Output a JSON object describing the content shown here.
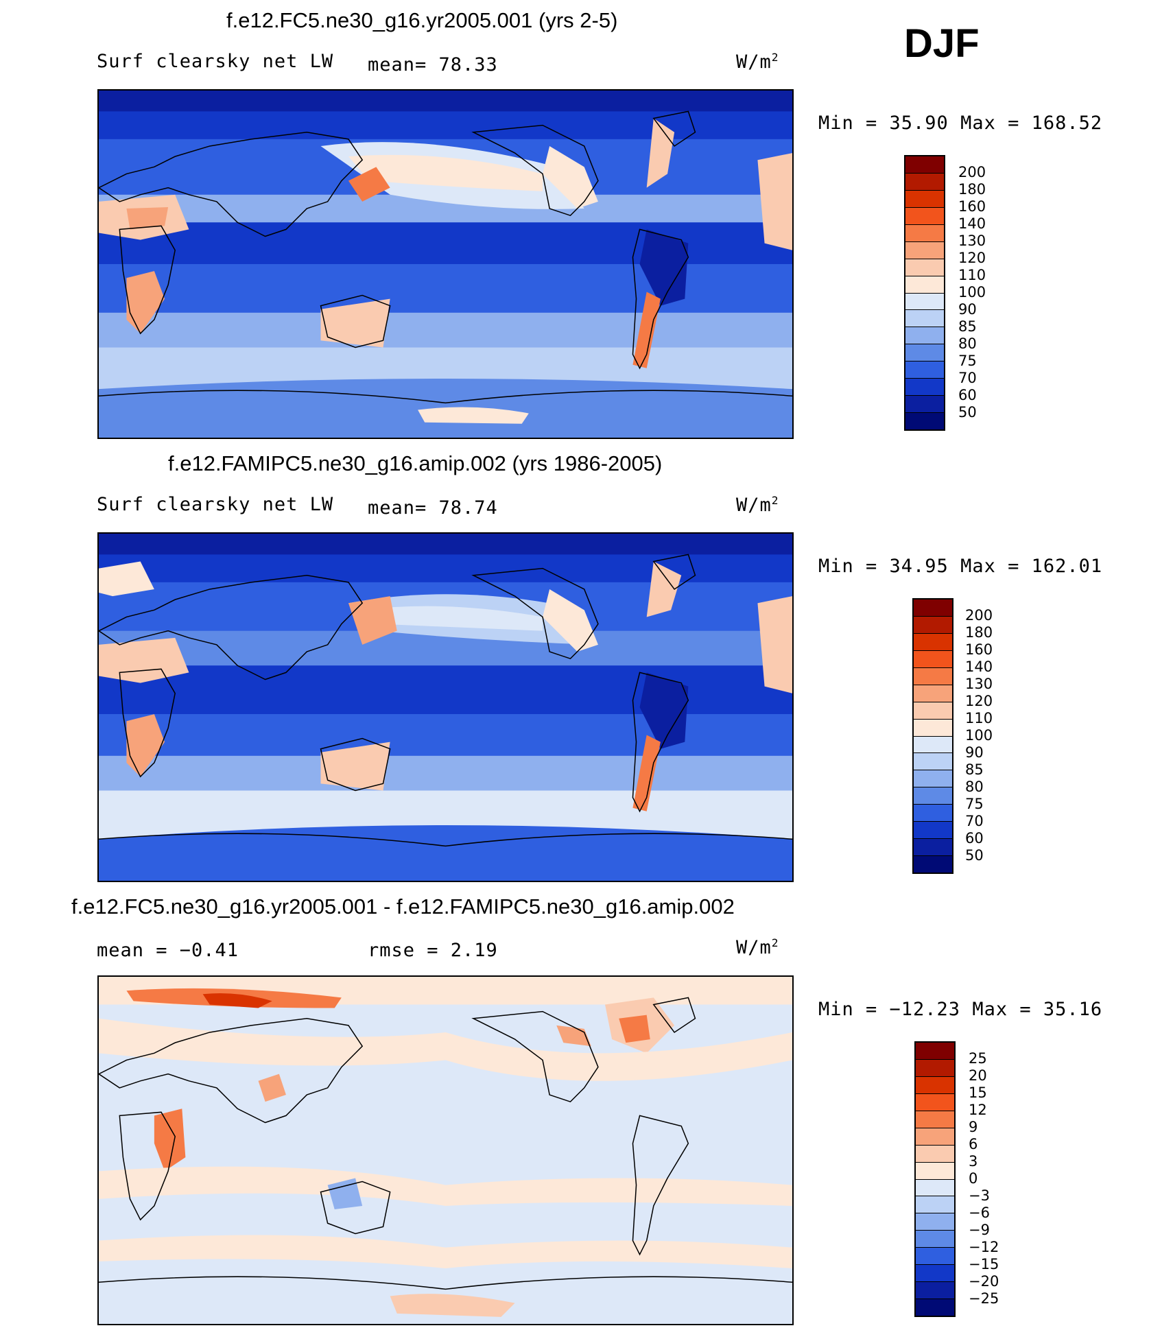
{
  "season": "DJF",
  "units_base": "W/m",
  "units_exp": "2",
  "panels": [
    {
      "title": "f.e12.FC5.ne30_g16.yr2005.001 (yrs 2-5)",
      "variable": "Surf clearsky net LW",
      "stat_text": "mean=  78.33",
      "minmax_text": "Min =   35.90 Max =  168.52",
      "colorbar_labels": [
        "200",
        "180",
        "160",
        "140",
        "130",
        "120",
        "110",
        "100",
        "90",
        "85",
        "80",
        "75",
        "70",
        "60",
        "50"
      ]
    },
    {
      "title": "f.e12.FAMIPC5.ne30_g16.amip.002 (yrs 1986-2005)",
      "variable": "Surf clearsky net LW",
      "stat_text": "mean=  78.74",
      "minmax_text": "Min =   34.95 Max =  162.01",
      "colorbar_labels": [
        "200",
        "180",
        "160",
        "140",
        "130",
        "120",
        "110",
        "100",
        "90",
        "85",
        "80",
        "75",
        "70",
        "60",
        "50"
      ]
    },
    {
      "title": "f.e12.FC5.ne30_g16.yr2005.001 - f.e12.FAMIPC5.ne30_g16.amip.002",
      "mean_text": "mean =  −0.41",
      "rmse_text": "rmse =   2.19",
      "minmax_text": "Min = −12.23 Max =   35.16",
      "colorbar_labels": [
        "25",
        "20",
        "15",
        "12",
        "9",
        "6",
        "3",
        "0",
        "−3",
        "−6",
        "−9",
        "−12",
        "−15",
        "−20",
        "−25"
      ]
    }
  ],
  "colors": {
    "abs_scale": [
      "#7f0000",
      "#b21a00",
      "#d93300",
      "#f2541c",
      "#f57a45",
      "#f7a37a",
      "#facbb0",
      "#fde8d8",
      "#dde8f8",
      "#bcd2f5",
      "#8fb0ee",
      "#5e8ae6",
      "#2f5fe0",
      "#1238c8",
      "#0b1fa0",
      "#000a75"
    ],
    "diff_scale": [
      "#7f0000",
      "#b21a00",
      "#d93300",
      "#f2541c",
      "#f57a45",
      "#f7a37a",
      "#facbb0",
      "#fde8d8",
      "#dde8f8",
      "#bcd2f5",
      "#8fb0ee",
      "#5e8ae6",
      "#2f5fe0",
      "#1238c8",
      "#0b1fa0",
      "#000a75"
    ]
  }
}
